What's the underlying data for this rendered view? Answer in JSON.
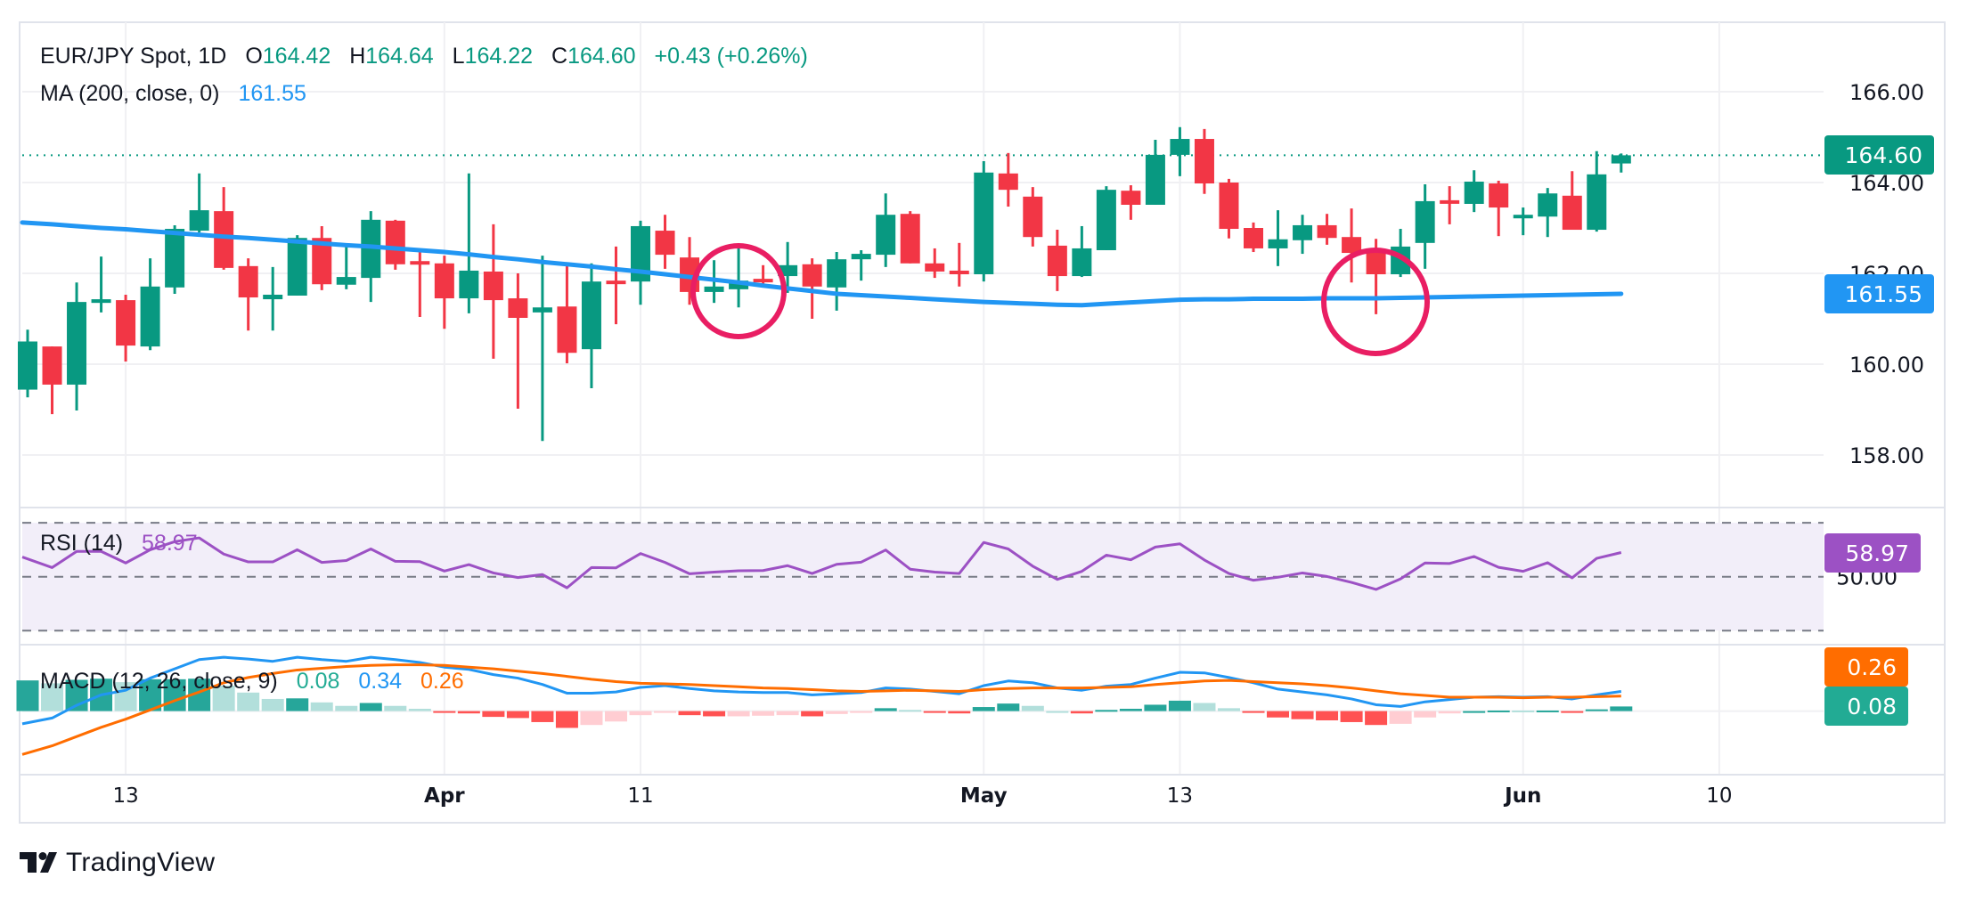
{
  "header": {
    "symbol": "EUR/JPY Spot, 1D",
    "open_label": "O",
    "open": "164.42",
    "high_label": "H",
    "high": "164.64",
    "low_label": "L",
    "low": "164.22",
    "close_label": "C",
    "close": "164.60",
    "change": "+0.43 (+0.26%)"
  },
  "ma_legend": {
    "label": "MA (200, close, 0)",
    "value": "161.55"
  },
  "rsi_legend": {
    "label": "RSI (14)",
    "value": "58.97"
  },
  "macd_legend": {
    "label": "MACD (12, 26, close, 9)",
    "histogram": "0.08",
    "macd": "0.34",
    "signal": "0.26"
  },
  "price_axis": {
    "ticks": [
      "166.00",
      "164.00",
      "162.00",
      "160.00",
      "158.00"
    ]
  },
  "rsi_axis": {
    "ticks": [
      "50.00"
    ]
  },
  "badges": {
    "last_price": "164.60",
    "ma": "161.55",
    "rsi": "58.97",
    "macd_signal": "0.26",
    "macd_histogram": "0.08"
  },
  "time_axis": {
    "labels": [
      "13",
      "Apr",
      "11",
      "May",
      "13",
      "Jun",
      "10"
    ]
  },
  "logo": {
    "text": "TradingView"
  },
  "colors": {
    "up": "#089981",
    "down": "#f23645",
    "ma": "#2196f3",
    "rsi": "#9c51c4",
    "macd": "#2196f3",
    "signal": "#ff6d00",
    "hist_up_strong": "#26a69a",
    "hist_up_weak": "#b2dfdb",
    "hist_down_strong": "#ff5252",
    "hist_down_weak": "#ffcdd2",
    "annotation": "#e91e63",
    "rsi_badge": "#9c51c4",
    "macd_hist_badge": "#22ab94"
  },
  "chart_data": {
    "type": "candlestick",
    "title": "EUR/JPY Spot, 1D",
    "ylim": [
      157.84,
      167.53
    ],
    "grid": true,
    "last_price": 164.6,
    "ohlc": [
      [
        159.44,
        160.76,
        159.27,
        160.5
      ],
      [
        160.39,
        160.39,
        158.9,
        159.55
      ],
      [
        159.55,
        161.8,
        158.98,
        161.37
      ],
      [
        161.35,
        162.37,
        161.14,
        161.43
      ],
      [
        161.41,
        161.53,
        160.06,
        160.41
      ],
      [
        160.39,
        162.33,
        160.31,
        161.71
      ],
      [
        161.69,
        163.06,
        161.55,
        162.98
      ],
      [
        162.94,
        164.2,
        162.9,
        163.39
      ],
      [
        163.37,
        163.9,
        162.08,
        162.12
      ],
      [
        162.16,
        162.33,
        160.74,
        161.47
      ],
      [
        161.43,
        162.14,
        160.74,
        161.53
      ],
      [
        161.51,
        162.84,
        161.51,
        162.78
      ],
      [
        162.78,
        163.04,
        161.63,
        161.76
      ],
      [
        161.75,
        162.63,
        161.65,
        161.92
      ],
      [
        161.9,
        163.37,
        161.37,
        163.18
      ],
      [
        163.16,
        163.18,
        162.08,
        162.2
      ],
      [
        162.27,
        162.49,
        161.04,
        162.2
      ],
      [
        162.22,
        162.39,
        160.78,
        161.45
      ],
      [
        161.45,
        164.2,
        161.12,
        162.06
      ],
      [
        162.04,
        163.08,
        160.12,
        161.41
      ],
      [
        161.45,
        162.0,
        159.02,
        161.02
      ],
      [
        161.14,
        162.39,
        158.31,
        161.25
      ],
      [
        161.27,
        162.22,
        160.02,
        160.25
      ],
      [
        160.33,
        162.22,
        159.47,
        161.82
      ],
      [
        161.84,
        162.59,
        160.88,
        161.8
      ],
      [
        161.82,
        163.16,
        161.31,
        163.04
      ],
      [
        162.94,
        163.29,
        162.1,
        162.41
      ],
      [
        162.35,
        162.8,
        161.31,
        161.59
      ],
      [
        161.59,
        162.29,
        161.35,
        161.71
      ],
      [
        161.65,
        162.65,
        161.25,
        161.84
      ],
      [
        161.88,
        162.18,
        161.71,
        161.84
      ],
      [
        161.94,
        162.69,
        161.57,
        162.18
      ],
      [
        162.2,
        162.33,
        161.0,
        161.71
      ],
      [
        161.69,
        162.47,
        161.18,
        162.31
      ],
      [
        162.31,
        162.51,
        161.84,
        162.43
      ],
      [
        162.41,
        163.76,
        162.14,
        163.29
      ],
      [
        163.31,
        163.37,
        162.22,
        162.22
      ],
      [
        162.22,
        162.55,
        161.9,
        162.04
      ],
      [
        162.06,
        162.67,
        161.71,
        161.98
      ],
      [
        161.98,
        164.47,
        161.82,
        164.22
      ],
      [
        164.2,
        164.65,
        163.47,
        163.84
      ],
      [
        163.69,
        163.9,
        162.59,
        162.8
      ],
      [
        162.61,
        162.96,
        161.61,
        161.94
      ],
      [
        161.94,
        163.04,
        161.92,
        162.55
      ],
      [
        162.51,
        163.92,
        162.51,
        163.84
      ],
      [
        163.82,
        163.94,
        163.18,
        163.51
      ],
      [
        163.51,
        164.94,
        163.51,
        164.61
      ],
      [
        164.61,
        165.22,
        164.14,
        164.96
      ],
      [
        164.96,
        165.18,
        163.75,
        163.98
      ],
      [
        164.0,
        164.08,
        162.77,
        162.98
      ],
      [
        163.0,
        163.12,
        162.47,
        162.55
      ],
      [
        162.55,
        163.39,
        162.16,
        162.75
      ],
      [
        162.73,
        163.29,
        162.43,
        163.06
      ],
      [
        163.06,
        163.31,
        162.63,
        162.78
      ],
      [
        162.8,
        163.43,
        161.8,
        162.45
      ],
      [
        162.47,
        162.76,
        161.1,
        161.98
      ],
      [
        161.98,
        162.98,
        161.92,
        162.59
      ],
      [
        162.67,
        163.96,
        162.1,
        163.59
      ],
      [
        163.61,
        163.92,
        163.08,
        163.57
      ],
      [
        163.53,
        164.27,
        163.35,
        164.02
      ],
      [
        163.98,
        164.04,
        162.82,
        163.45
      ],
      [
        163.25,
        163.45,
        162.84,
        163.29
      ],
      [
        163.25,
        163.88,
        162.8,
        163.76
      ],
      [
        163.71,
        164.25,
        162.96,
        162.96
      ],
      [
        162.96,
        164.69,
        162.92,
        164.18
      ],
      [
        164.42,
        164.64,
        164.22,
        164.6
      ]
    ],
    "ma200": [
      163.12,
      163.08,
      163.04,
      163.0,
      162.97,
      162.93,
      162.89,
      162.85,
      162.81,
      162.78,
      162.74,
      162.7,
      162.66,
      162.62,
      162.59,
      162.55,
      162.51,
      162.47,
      162.42,
      162.36,
      162.31,
      162.25,
      162.2,
      162.15,
      162.09,
      162.04,
      161.98,
      161.92,
      161.86,
      161.8,
      161.73,
      161.67,
      161.61,
      161.55,
      161.52,
      161.49,
      161.46,
      161.43,
      161.4,
      161.37,
      161.35,
      161.33,
      161.31,
      161.3,
      161.33,
      161.36,
      161.39,
      161.42,
      161.43,
      161.43,
      161.44,
      161.44,
      161.44,
      161.45,
      161.45,
      161.45,
      161.46,
      161.47,
      161.48,
      161.49,
      161.5,
      161.51,
      161.52,
      161.53,
      161.54,
      161.55
    ],
    "rsi": {
      "ylim": [
        24.8,
        75.6
      ],
      "levels": [
        70,
        50,
        30
      ],
      "values": [
        57.3,
        53.4,
        59.4,
        59.4,
        55.1,
        60.0,
        63.0,
        64.4,
        58.4,
        55.5,
        55.5,
        60.0,
        55.3,
        56.0,
        60.3,
        55.7,
        55.6,
        52.1,
        54.5,
        51.4,
        49.7,
        50.8,
        45.9,
        53.4,
        53.3,
        58.6,
        55.3,
        51.1,
        51.7,
        52.2,
        52.3,
        54.1,
        51.2,
        54.6,
        55.4,
        59.9,
        52.8,
        51.7,
        51.2,
        62.7,
        60.3,
        53.9,
        49.0,
        52.0,
        58.0,
        56.3,
        61.0,
        62.2,
        56.2,
        51.2,
        48.7,
        49.8,
        51.4,
        50.1,
        47.9,
        45.3,
        49.2,
        55.1,
        54.9,
        57.5,
        53.5,
        52.0,
        55.2,
        49.6,
        56.8,
        58.97
      ]
    },
    "macd": {
      "ylim": [
        -1.1,
        1.16
      ],
      "macd": [
        -0.22,
        -0.12,
        0.1,
        0.28,
        0.36,
        0.57,
        0.73,
        0.89,
        0.93,
        0.9,
        0.86,
        0.93,
        0.89,
        0.86,
        0.93,
        0.89,
        0.84,
        0.76,
        0.72,
        0.63,
        0.57,
        0.46,
        0.31,
        0.31,
        0.33,
        0.41,
        0.44,
        0.39,
        0.35,
        0.33,
        0.32,
        0.32,
        0.28,
        0.3,
        0.32,
        0.4,
        0.38,
        0.34,
        0.3,
        0.44,
        0.52,
        0.49,
        0.4,
        0.36,
        0.43,
        0.46,
        0.57,
        0.67,
        0.66,
        0.58,
        0.49,
        0.38,
        0.33,
        0.28,
        0.21,
        0.11,
        0.08,
        0.16,
        0.2,
        0.24,
        0.25,
        0.24,
        0.25,
        0.21,
        0.28,
        0.34
      ],
      "signal": [
        -0.75,
        -0.6,
        -0.44,
        -0.28,
        -0.14,
        0.02,
        0.18,
        0.33,
        0.49,
        0.58,
        0.65,
        0.71,
        0.74,
        0.77,
        0.79,
        0.8,
        0.8,
        0.79,
        0.76,
        0.73,
        0.69,
        0.65,
        0.6,
        0.55,
        0.51,
        0.48,
        0.47,
        0.46,
        0.44,
        0.42,
        0.4,
        0.39,
        0.37,
        0.35,
        0.34,
        0.35,
        0.36,
        0.35,
        0.34,
        0.37,
        0.39,
        0.4,
        0.4,
        0.4,
        0.41,
        0.42,
        0.46,
        0.49,
        0.52,
        0.53,
        0.51,
        0.49,
        0.47,
        0.44,
        0.4,
        0.35,
        0.3,
        0.27,
        0.24,
        0.24,
        0.24,
        0.23,
        0.24,
        0.24,
        0.25,
        0.26
      ]
    }
  }
}
